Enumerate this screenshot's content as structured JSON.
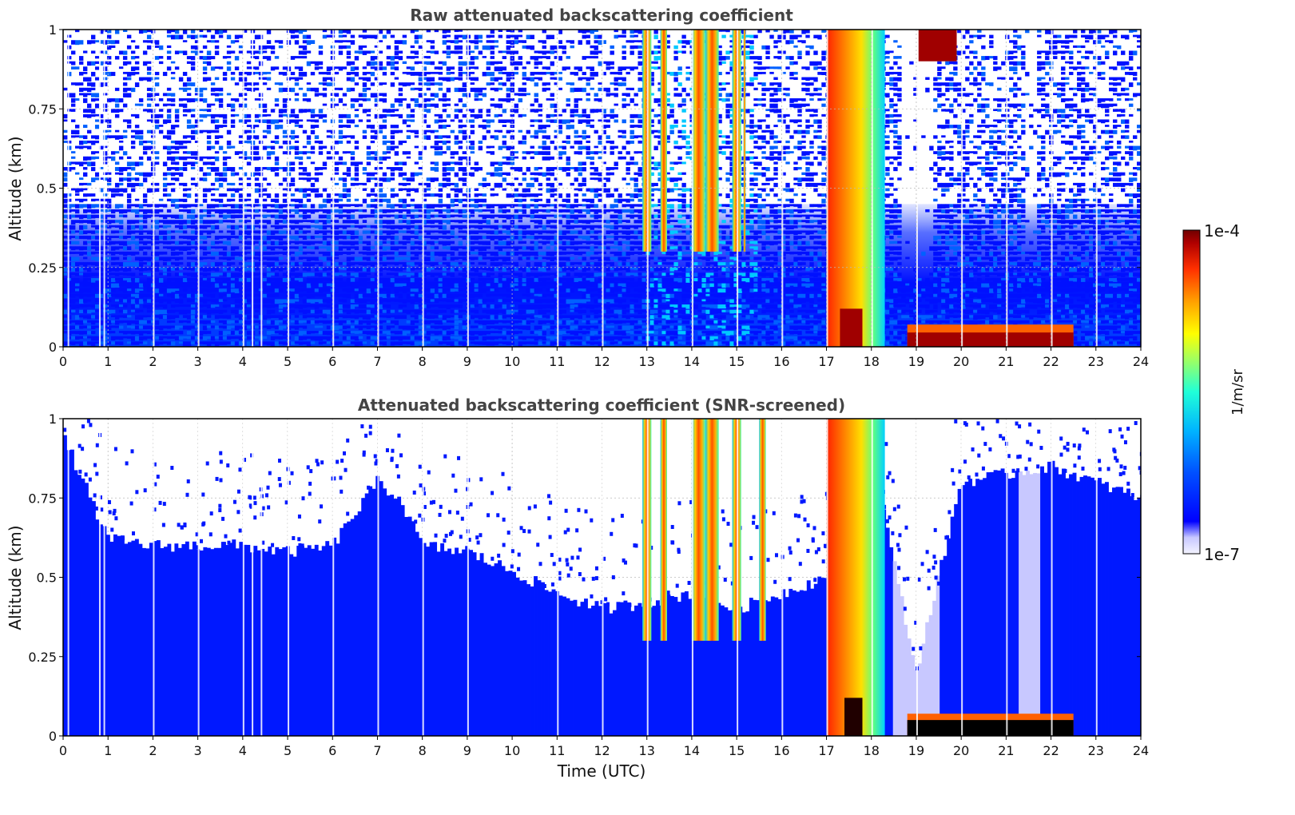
{
  "chart_data": [
    {
      "type": "heatmap",
      "title": "Raw attenuated backscattering coefficient",
      "xlabel": "",
      "ylabel": "Altitude (km)",
      "xlim": [
        0,
        24
      ],
      "ylim": [
        0,
        1
      ],
      "x_ticks": [
        "0",
        "1",
        "2",
        "3",
        "4",
        "5",
        "6",
        "7",
        "8",
        "9",
        "10",
        "11",
        "12",
        "13",
        "14",
        "15",
        "16",
        "17",
        "18",
        "19",
        "20",
        "21",
        "22",
        "23",
        "24"
      ],
      "y_ticks": [
        "0",
        "0.25",
        "0.5",
        "0.75",
        "1"
      ],
      "grid": true,
      "features": [
        {
          "x_start": 0,
          "x_end": 13,
          "y_top": 1.0,
          "level": "low",
          "note": "noisy boundary layer, dense below ~0.5 km"
        },
        {
          "x_start": 12.9,
          "x_end": 15.2,
          "y_top": 1.0,
          "level": "high",
          "note": "cloud streaks reaching 1 km"
        },
        {
          "x_start": 17.0,
          "x_end": 18.3,
          "y_top": 1.0,
          "level": "very high",
          "note": "dense cloud/precipitation"
        },
        {
          "x_start": 18.8,
          "x_end": 22.5,
          "y_top": 0.07,
          "level": "very high",
          "note": "low layer near surface"
        },
        {
          "x_start": 19.05,
          "x_end": 19.9,
          "y_top": 1.0,
          "y_bottom": 0.9,
          "level": "very high",
          "note": "high cloud"
        }
      ]
    },
    {
      "type": "heatmap",
      "title": "Attenuated backscattering coefficient (SNR-screened)",
      "xlabel": "Time (UTC)",
      "ylabel": "Altitude (km)",
      "xlim": [
        0,
        24
      ],
      "ylim": [
        0,
        1
      ],
      "x_ticks": [
        "0",
        "1",
        "2",
        "3",
        "4",
        "5",
        "6",
        "7",
        "8",
        "9",
        "10",
        "11",
        "12",
        "13",
        "14",
        "15",
        "16",
        "17",
        "18",
        "19",
        "20",
        "21",
        "22",
        "23",
        "24"
      ],
      "y_ticks": [
        "0",
        "0.25",
        "0.5",
        "0.75",
        "1"
      ],
      "grid": true,
      "boundary_layer_top_km": [
        [
          0,
          0.95
        ],
        [
          1,
          0.62
        ],
        [
          2,
          0.6
        ],
        [
          3,
          0.6
        ],
        [
          4,
          0.6
        ],
        [
          5,
          0.58
        ],
        [
          6,
          0.6
        ],
        [
          7,
          0.8
        ],
        [
          7.5,
          0.75
        ],
        [
          8,
          0.6
        ],
        [
          9,
          0.58
        ],
        [
          10,
          0.52
        ],
        [
          11,
          0.45
        ],
        [
          12,
          0.4
        ],
        [
          13,
          0.42
        ],
        [
          14,
          0.45
        ],
        [
          15,
          0.4
        ],
        [
          16,
          0.45
        ],
        [
          17,
          0.5
        ],
        [
          18,
          0.9
        ],
        [
          19,
          0.2
        ],
        [
          20,
          0.8
        ],
        [
          22,
          0.85
        ],
        [
          24,
          0.75
        ]
      ]
    }
  ],
  "colorbar": {
    "label": "1/m/sr",
    "min_label": "1e-7",
    "max_label": "1e-4",
    "colormap": [
      "#f4f4ff",
      "#c8c8ff",
      "#0000ff",
      "#0060ff",
      "#00c8ff",
      "#30ffd0",
      "#b0ff50",
      "#ffff00",
      "#ffa000",
      "#ff3000",
      "#a00000",
      "#700000"
    ]
  }
}
